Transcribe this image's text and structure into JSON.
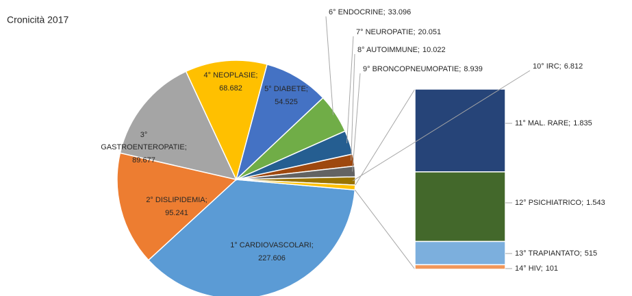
{
  "chart_data": {
    "type": "bar_of_pie",
    "title": "Cronicità 2017",
    "categories": [
      "1° CARDIOVASCOLARI;",
      "2° DISLIPIDEMIA;",
      "3° GASTROENTEROPATIE;",
      "4° NEOPLASIE;",
      "5° DIABETE;",
      "6° ENDOCRINE;",
      "7° NEUROPATIE;",
      "8° AUTOIMMUNE;",
      "9° BRONCOPNEUMOPATIE;",
      "10° IRC;",
      "11° MAL. RARE;",
      "12° PSICHIATRICO;",
      "13° TRAPIANTATO;",
      "14° HIV;"
    ],
    "values": [
      227606,
      95241,
      89677,
      68682,
      54525,
      33096,
      20051,
      10022,
      8939,
      6812,
      1835,
      1543,
      515,
      101
    ],
    "value_labels": [
      "227.606",
      "95.241",
      "89.677",
      "68.682",
      "54.525",
      "33.096",
      "20.051",
      "10.022",
      "8.939",
      "6.812",
      "1.835",
      "1.543",
      "515",
      "101"
    ],
    "colors": [
      "#5b9bd5",
      "#ed7d31",
      "#a5a5a5",
      "#ffc000",
      "#4472c4",
      "#70ad47",
      "#255e91",
      "#9e480e",
      "#636363",
      "#997300",
      "#264478",
      "#43682b",
      "#7cafdd",
      "#f1975a"
    ],
    "secondary_plot_count": 4
  }
}
